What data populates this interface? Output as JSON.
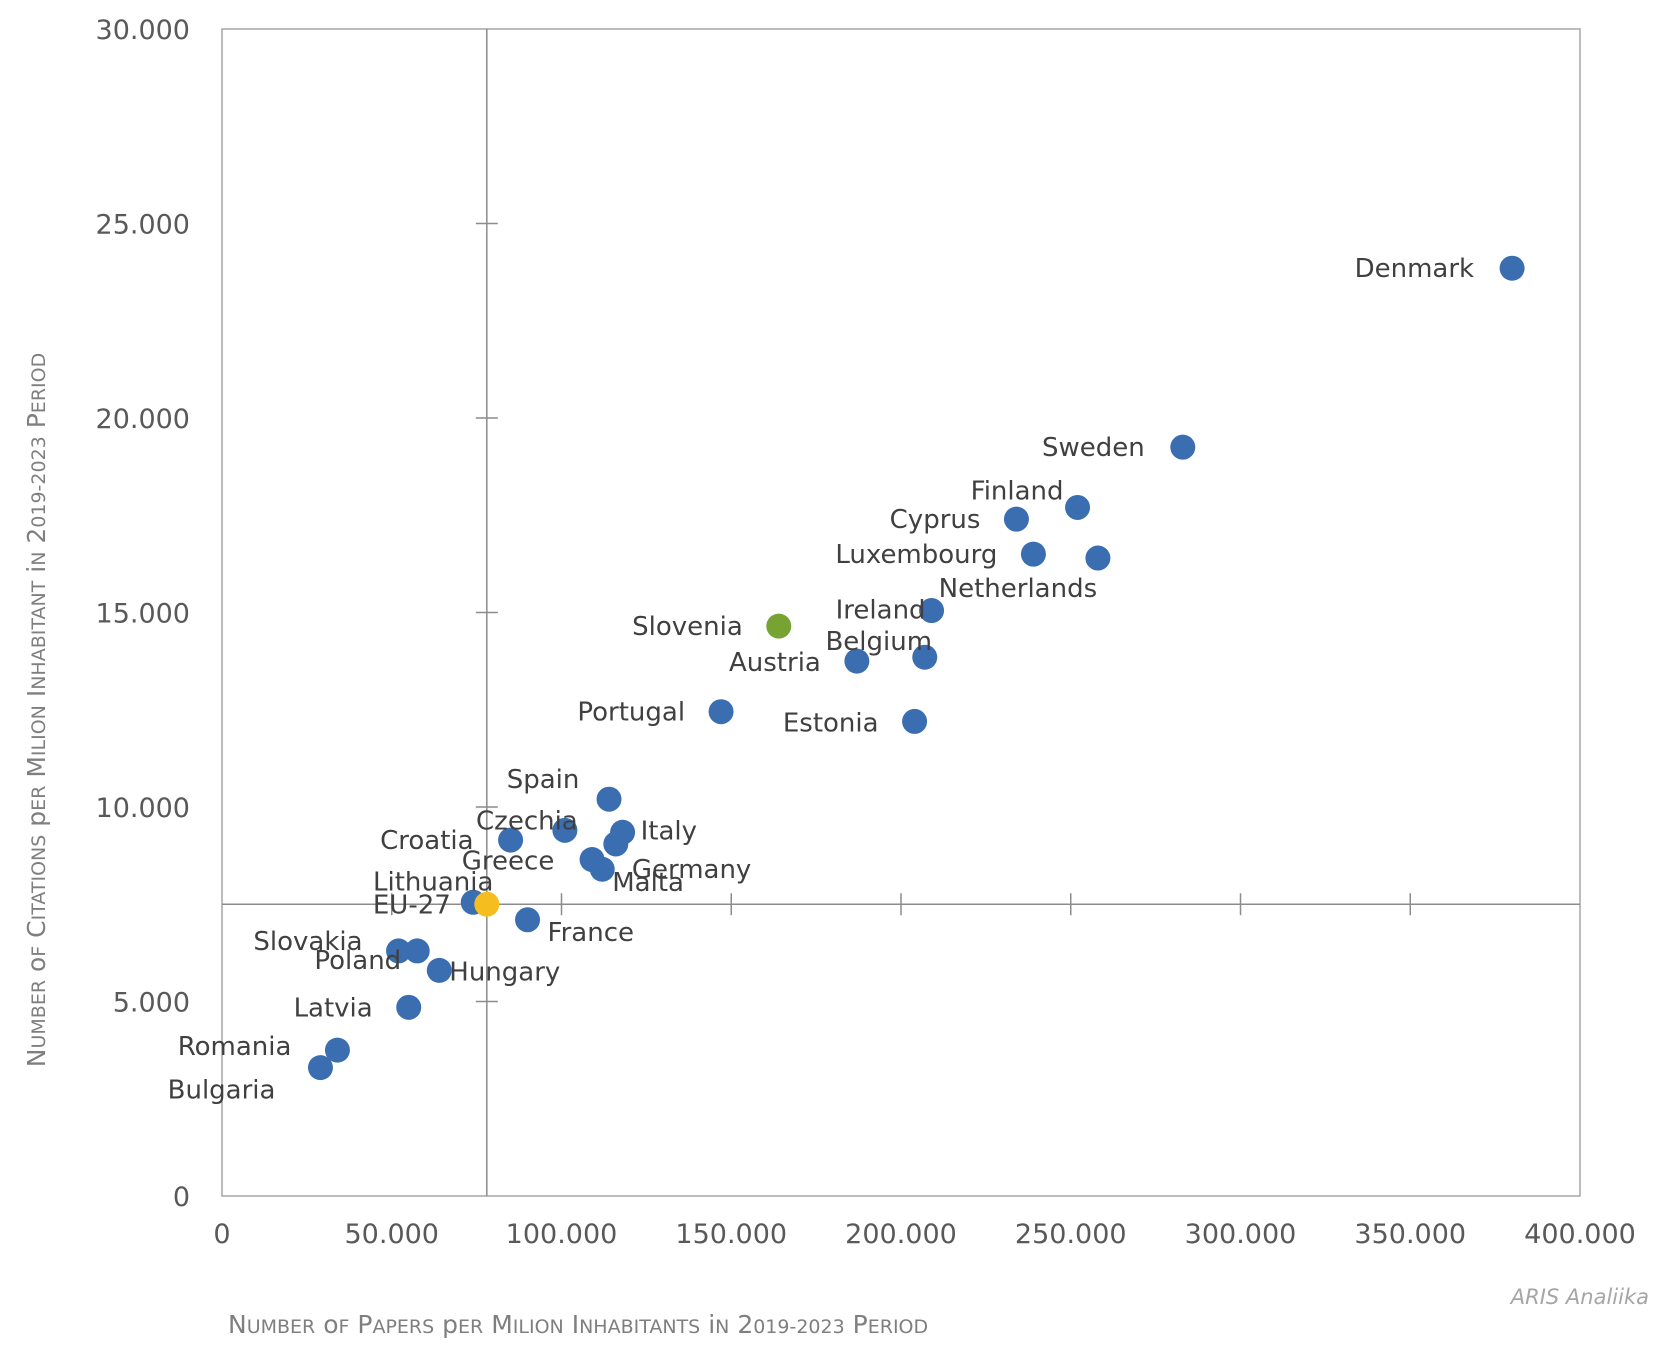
{
  "chart_data": {
    "type": "scatter",
    "xlabel": "Number of Papers per Milion Inhabitants in 2019-2023 Period",
    "ylabel": "Number of Citations per Milion Inhabitant in 2019-2023 Period",
    "xlim": [
      0,
      400000
    ],
    "ylim": [
      0,
      30000
    ],
    "x_ticks": [
      "0",
      "50.000",
      "100.000",
      "150.000",
      "200.000",
      "250.000",
      "300.000",
      "350.000",
      "400.000"
    ],
    "y_ticks": [
      "0",
      "5.000",
      "10.000",
      "15.000",
      "20.000",
      "25.000",
      "30.000"
    ],
    "reference_lines": {
      "x": 78000,
      "y": 7500
    },
    "colors": {
      "default": "#3a6eb0",
      "slovenia": "#77a332",
      "eu27": "#f5be1e",
      "label_default": "#404040"
    },
    "points": [
      {
        "name": "Denmark",
        "x": 380000,
        "y": 23850,
        "color": "#3a6eb0"
      },
      {
        "name": "Sweden",
        "x": 283000,
        "y": 19250,
        "color": "#3a6eb0"
      },
      {
        "name": "Finland",
        "x": 252000,
        "y": 17700,
        "color": "#3a6eb0"
      },
      {
        "name": "Cyprus",
        "x": 234000,
        "y": 17400,
        "color": "#3a6eb0"
      },
      {
        "name": "Luxembourg",
        "x": 239000,
        "y": 16500,
        "color": "#3a6eb0"
      },
      {
        "name": "Netherlands",
        "x": 258000,
        "y": 16400,
        "color": "#3a6eb0"
      },
      {
        "name": "Ireland",
        "x": 209000,
        "y": 15050,
        "color": "#3a6eb0"
      },
      {
        "name": "Slovenia",
        "x": 164000,
        "y": 14650,
        "color": "#77a332"
      },
      {
        "name": "Belgium",
        "x": 207000,
        "y": 13850,
        "color": "#3a6eb0"
      },
      {
        "name": "Austria",
        "x": 187000,
        "y": 13750,
        "color": "#3a6eb0"
      },
      {
        "name": "Portugal",
        "x": 147000,
        "y": 12450,
        "color": "#3a6eb0"
      },
      {
        "name": "Estonia",
        "x": 204000,
        "y": 12200,
        "color": "#3a6eb0"
      },
      {
        "name": "Spain",
        "x": 114000,
        "y": 10200,
        "color": "#3a6eb0"
      },
      {
        "name": "Czechia",
        "x": 101000,
        "y": 9400,
        "color": "#3a6eb0"
      },
      {
        "name": "Italy",
        "x": 118000,
        "y": 9350,
        "color": "#3a6eb0"
      },
      {
        "name": "Croatia",
        "x": 85000,
        "y": 9150,
        "color": "#3a6eb0"
      },
      {
        "name": "Germany",
        "x": 116000,
        "y": 9050,
        "color": "#3a6eb0"
      },
      {
        "name": "Greece",
        "x": 109000,
        "y": 8650,
        "color": "#3a6eb0"
      },
      {
        "name": "Malta",
        "x": 112000,
        "y": 8400,
        "color": "#3a6eb0"
      },
      {
        "name": "Lithuania",
        "x": 74000,
        "y": 7550,
        "color": "#3a6eb0"
      },
      {
        "name": "EU-27",
        "x": 78000,
        "y": 7500,
        "color": "#f5be1e"
      },
      {
        "name": "France",
        "x": 90000,
        "y": 7100,
        "color": "#3a6eb0"
      },
      {
        "name": "Slovakia",
        "x": 52000,
        "y": 6300,
        "color": "#3a6eb0"
      },
      {
        "name": "Poland",
        "x": 57500,
        "y": 6300,
        "color": "#3a6eb0"
      },
      {
        "name": "Hungary",
        "x": 64000,
        "y": 5800,
        "color": "#3a6eb0"
      },
      {
        "name": "Latvia",
        "x": 55000,
        "y": 4850,
        "color": "#3a6eb0"
      },
      {
        "name": "Romania",
        "x": 34000,
        "y": 3750,
        "color": "#3a6eb0"
      },
      {
        "name": "Bulgaria",
        "x": 29000,
        "y": 3300,
        "color": "#3a6eb0"
      }
    ]
  },
  "credit": "ARIS Analiika"
}
